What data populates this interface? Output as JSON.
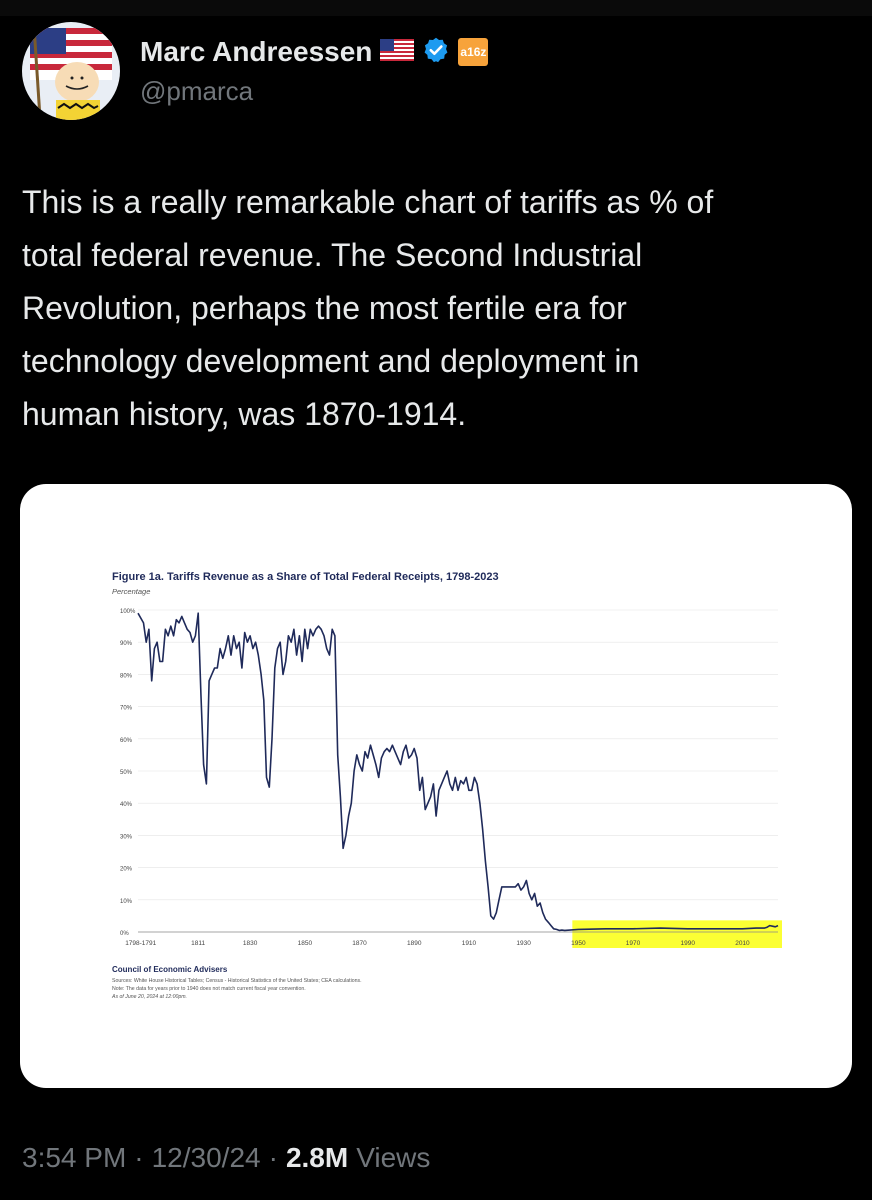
{
  "tweet": {
    "author_name": "Marc Andreessen",
    "author_handle": "@pmarca",
    "flag_icon": "us-flag-icon",
    "verified_icon": "verified-badge-icon",
    "affiliate_badge": "a16z",
    "text": "This is a really remarkable chart of tariffs as % of\ntotal federal revenue. The Second Industrial\nRevolution, perhaps the most fertile era for\ntechnology development and deployment in\nhuman history, was 1870-1914.",
    "time": "3:54 PM",
    "date": "12/30/24",
    "separator": "·",
    "views_count": "2.8M",
    "views_label": "Views"
  },
  "colors": {
    "line": "#1f2a5a",
    "highlight": "#fbff1e",
    "verified": "#1d9bf0",
    "badge": "#f7a33b"
  },
  "chart_data": {
    "type": "line",
    "title": "Figure 1a. Tariffs Revenue as a Share of Total Federal Receipts, 1798-2023",
    "ylabel": "Percentage",
    "xlabel": "",
    "xlim": [
      1789,
      2023
    ],
    "ylim": [
      0,
      100
    ],
    "y_ticks": [
      "0%",
      "10%",
      "20%",
      "30%",
      "40%",
      "50%",
      "60%",
      "70%",
      "80%",
      "90%",
      "100%"
    ],
    "x_ticks": [
      {
        "label": "1798-1791",
        "x": 1790
      },
      {
        "label": "1811",
        "x": 1811
      },
      {
        "label": "1830",
        "x": 1830
      },
      {
        "label": "1850",
        "x": 1850
      },
      {
        "label": "1870",
        "x": 1870
      },
      {
        "label": "1890",
        "x": 1890
      },
      {
        "label": "1910",
        "x": 1910
      },
      {
        "label": "1930",
        "x": 1930
      },
      {
        "label": "1950",
        "x": 1950
      },
      {
        "label": "1970",
        "x": 1970
      },
      {
        "label": "1990",
        "x": 1990
      },
      {
        "label": "2010",
        "x": 2010
      }
    ],
    "grid": true,
    "highlight_range": [
      1950,
      2023
    ],
    "series": [
      {
        "x": [
          1789,
          1791,
          1792,
          1793,
          1794,
          1795,
          1796,
          1797,
          1798,
          1799,
          1800,
          1801,
          1802,
          1803,
          1804,
          1805,
          1806,
          1807,
          1808,
          1809,
          1810,
          1811,
          1812,
          1813,
          1814,
          1815,
          1816,
          1817,
          1818,
          1819,
          1820,
          1821,
          1822,
          1823,
          1824,
          1825,
          1826,
          1827,
          1828,
          1829,
          1830,
          1831,
          1832,
          1833,
          1834,
          1835,
          1836,
          1837,
          1838,
          1839,
          1840,
          1841,
          1842,
          1843,
          1844,
          1845,
          1846,
          1847,
          1848,
          1849,
          1850,
          1851,
          1852,
          1853,
          1854,
          1855,
          1856,
          1857,
          1858,
          1859,
          1860,
          1861,
          1862,
          1863,
          1864,
          1865,
          1866,
          1867,
          1868,
          1869,
          1870,
          1871,
          1872,
          1873,
          1874,
          1875,
          1876,
          1877,
          1878,
          1879,
          1880,
          1881,
          1882,
          1883,
          1884,
          1885,
          1886,
          1887,
          1888,
          1889,
          1890,
          1891,
          1892,
          1893,
          1894,
          1895,
          1896,
          1897,
          1898,
          1899,
          1900,
          1901,
          1902,
          1903,
          1904,
          1905,
          1906,
          1907,
          1908,
          1909,
          1910,
          1911,
          1912,
          1913,
          1914,
          1915,
          1916,
          1917,
          1918,
          1919,
          1920,
          1921,
          1922,
          1923,
          1924,
          1925,
          1926,
          1927,
          1928,
          1929,
          1930,
          1931,
          1932,
          1933,
          1934,
          1935,
          1936,
          1937,
          1938,
          1939,
          1940,
          1941,
          1942,
          1943,
          1944,
          1945,
          1950,
          1960,
          1970,
          1980,
          1990,
          2000,
          2010,
          2015,
          2018,
          2019,
          2020,
          2021,
          2022,
          2023
        ],
        "y": [
          99,
          96,
          90,
          94,
          78,
          88,
          90,
          84,
          84,
          94,
          92,
          95,
          92,
          97,
          96,
          98,
          96,
          94,
          93,
          90,
          92,
          99,
          74,
          52,
          46,
          78,
          80,
          82,
          82,
          88,
          85,
          88,
          92,
          86,
          92,
          88,
          90,
          82,
          93,
          90,
          92,
          88,
          90,
          86,
          80,
          72,
          48,
          45,
          60,
          82,
          88,
          90,
          80,
          84,
          92,
          90,
          94,
          86,
          92,
          84,
          94,
          88,
          94,
          92,
          94,
          95,
          94,
          92,
          88,
          86,
          94,
          92,
          55,
          42,
          26,
          30,
          36,
          40,
          50,
          55,
          52,
          50,
          56,
          54,
          58,
          55,
          52,
          48,
          54,
          56,
          57,
          56,
          58,
          56,
          54,
          52,
          56,
          58,
          54,
          55,
          57,
          54,
          44,
          48,
          38,
          40,
          42,
          46,
          36,
          44,
          46,
          48,
          50,
          46,
          44,
          48,
          44,
          47,
          46,
          48,
          44,
          44,
          48,
          46,
          40,
          32,
          22,
          14,
          5,
          4,
          6,
          10,
          14,
          14,
          14,
          14,
          14,
          14,
          15,
          13,
          14,
          16,
          12,
          10,
          12,
          8,
          9,
          6,
          4,
          3,
          2,
          1,
          0.8,
          0.5,
          0.6,
          0.5,
          0.8,
          1,
          1,
          1.2,
          1,
          1,
          1,
          1.2,
          1.2,
          1.5,
          2,
          1.8,
          1.6,
          2
        ]
      }
    ],
    "notes": [
      "Council of Economic Advisers",
      "Sources: White House Historical Tables; Census - Historical Statistics of the United States; CEA calculations.",
      "Note: The data for years prior to 1940 does not match current fiscal year convention.",
      "As of June 20, 2024 at 12:00pm."
    ]
  }
}
